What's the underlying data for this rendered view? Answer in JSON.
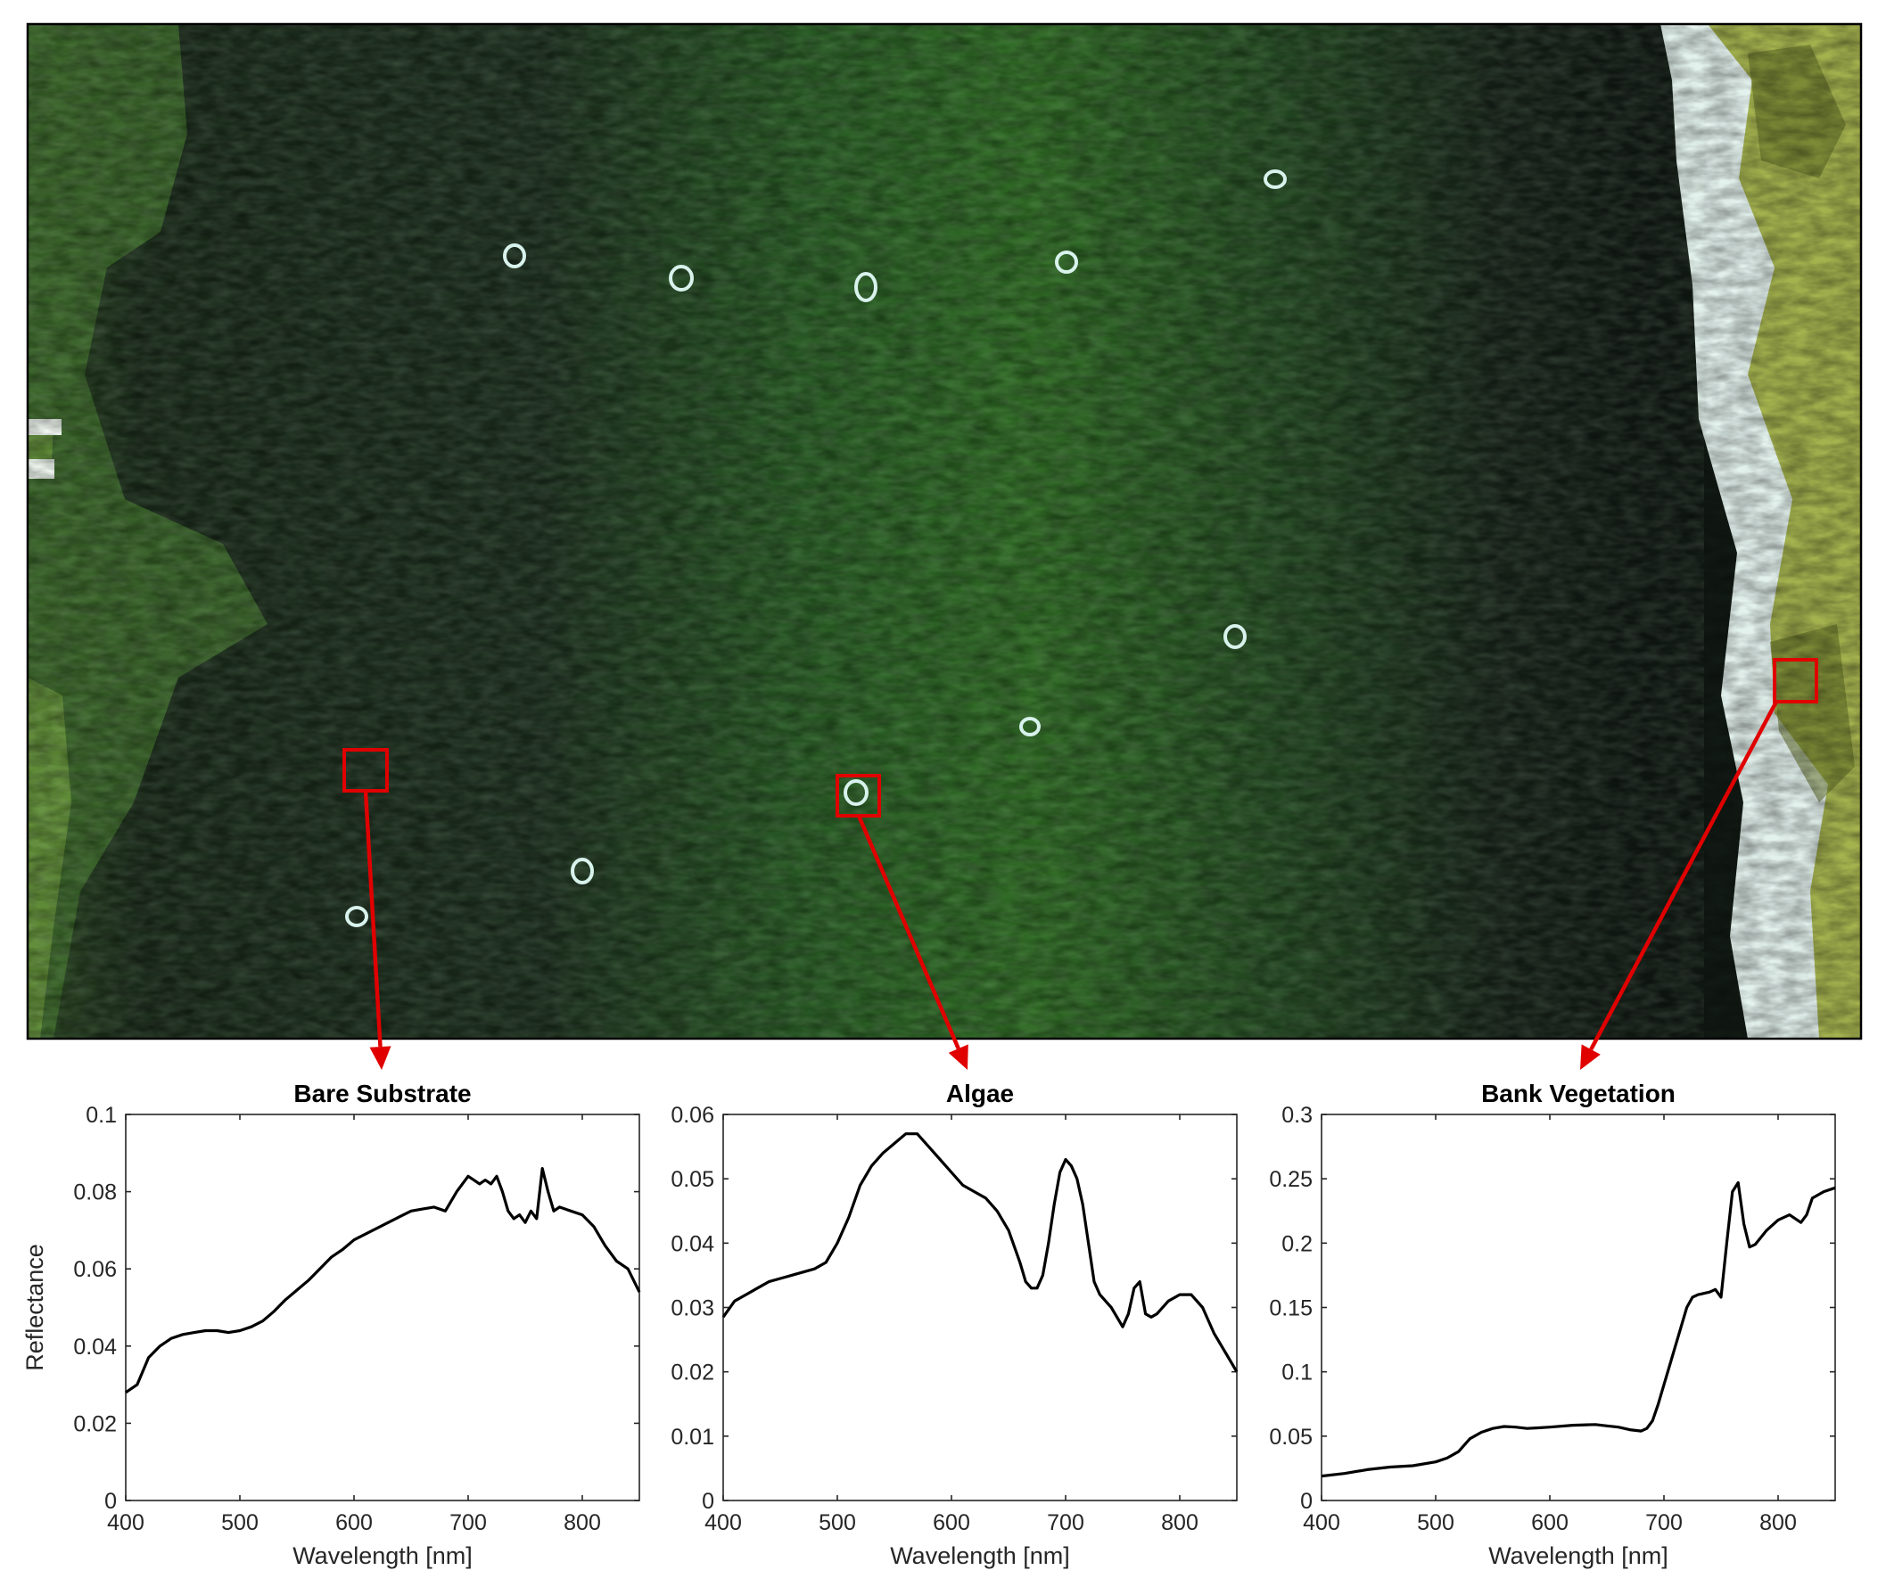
{
  "colors": {
    "marker": "#e00000",
    "line": "#000000",
    "river_green": "#2f6a22",
    "river_dark": "#162218",
    "bank_light": "#e4f2ee",
    "bank_veg": "#9aa832"
  },
  "image": {
    "markers": [
      {
        "target": "Bare Substrate"
      },
      {
        "target": "Algae"
      },
      {
        "target": "Bank Vegetation"
      }
    ]
  },
  "chart_data": [
    {
      "type": "line",
      "title": "Bare Substrate",
      "xlabel": "Wavelength [nm]",
      "ylabel": "Reflectance",
      "xlim": [
        400,
        850
      ],
      "ylim": [
        0,
        0.1
      ],
      "xticks": [
        "400",
        "500",
        "600",
        "700",
        "800"
      ],
      "yticks": [
        "0",
        "0.02",
        "0.04",
        "0.06",
        "0.08",
        "0.1"
      ],
      "grid": false,
      "x": [
        400,
        410,
        420,
        430,
        440,
        450,
        460,
        470,
        480,
        490,
        500,
        510,
        520,
        530,
        540,
        550,
        560,
        570,
        580,
        590,
        600,
        610,
        620,
        630,
        640,
        650,
        660,
        670,
        680,
        690,
        695,
        700,
        705,
        710,
        715,
        720,
        725,
        730,
        735,
        740,
        745,
        750,
        755,
        760,
        765,
        770,
        775,
        780,
        790,
        800,
        810,
        820,
        830,
        840,
        850
      ],
      "values": [
        0.028,
        0.03,
        0.037,
        0.04,
        0.042,
        0.043,
        0.0435,
        0.044,
        0.044,
        0.0435,
        0.044,
        0.045,
        0.0465,
        0.049,
        0.052,
        0.0545,
        0.057,
        0.06,
        0.063,
        0.065,
        0.0675,
        0.069,
        0.0705,
        0.072,
        0.0735,
        0.075,
        0.0755,
        0.076,
        0.075,
        0.08,
        0.082,
        0.084,
        0.083,
        0.082,
        0.083,
        0.082,
        0.084,
        0.08,
        0.075,
        0.073,
        0.074,
        0.072,
        0.075,
        0.073,
        0.086,
        0.08,
        0.075,
        0.076,
        0.075,
        0.074,
        0.071,
        0.066,
        0.062,
        0.06,
        0.054
      ]
    },
    {
      "type": "line",
      "title": "Algae",
      "xlabel": "Wavelength [nm]",
      "ylabel": "",
      "xlim": [
        400,
        850
      ],
      "ylim": [
        0,
        0.06
      ],
      "xticks": [
        "400",
        "500",
        "600",
        "700",
        "800"
      ],
      "yticks": [
        "0",
        "0.01",
        "0.02",
        "0.03",
        "0.04",
        "0.05",
        "0.06"
      ],
      "grid": false,
      "x": [
        400,
        410,
        420,
        430,
        440,
        450,
        460,
        470,
        480,
        490,
        500,
        510,
        520,
        530,
        540,
        550,
        560,
        570,
        580,
        590,
        600,
        610,
        620,
        630,
        640,
        650,
        660,
        665,
        670,
        675,
        680,
        685,
        690,
        695,
        700,
        705,
        710,
        715,
        720,
        725,
        730,
        740,
        750,
        755,
        760,
        765,
        770,
        775,
        780,
        790,
        800,
        810,
        820,
        830,
        840,
        850
      ],
      "values": [
        0.0285,
        0.031,
        0.032,
        0.033,
        0.034,
        0.0345,
        0.035,
        0.0355,
        0.036,
        0.037,
        0.04,
        0.044,
        0.049,
        0.052,
        0.054,
        0.0555,
        0.057,
        0.057,
        0.055,
        0.053,
        0.051,
        0.049,
        0.048,
        0.047,
        0.045,
        0.042,
        0.037,
        0.034,
        0.033,
        0.033,
        0.035,
        0.04,
        0.046,
        0.051,
        0.053,
        0.052,
        0.05,
        0.046,
        0.04,
        0.034,
        0.032,
        0.03,
        0.027,
        0.029,
        0.033,
        0.034,
        0.029,
        0.0285,
        0.029,
        0.031,
        0.032,
        0.032,
        0.03,
        0.026,
        0.023,
        0.02
      ]
    },
    {
      "type": "line",
      "title": "Bank Vegetation",
      "xlabel": "Wavelength [nm]",
      "ylabel": "",
      "xlim": [
        400,
        850
      ],
      "ylim": [
        0,
        0.3
      ],
      "xticks": [
        "400",
        "500",
        "600",
        "700",
        "800"
      ],
      "yticks": [
        "0",
        "0.05",
        "0.1",
        "0.15",
        "0.2",
        "0.25",
        "0.3"
      ],
      "grid": false,
      "x": [
        400,
        420,
        440,
        460,
        480,
        500,
        510,
        520,
        530,
        540,
        550,
        560,
        570,
        580,
        590,
        600,
        620,
        640,
        650,
        660,
        670,
        680,
        685,
        690,
        695,
        700,
        705,
        710,
        715,
        720,
        725,
        730,
        740,
        745,
        750,
        755,
        760,
        765,
        770,
        775,
        780,
        790,
        800,
        810,
        820,
        825,
        830,
        840,
        850
      ],
      "values": [
        0.019,
        0.021,
        0.024,
        0.026,
        0.027,
        0.03,
        0.033,
        0.038,
        0.048,
        0.053,
        0.056,
        0.0575,
        0.057,
        0.056,
        0.0565,
        0.057,
        0.0585,
        0.059,
        0.058,
        0.057,
        0.055,
        0.054,
        0.056,
        0.062,
        0.075,
        0.09,
        0.105,
        0.12,
        0.135,
        0.15,
        0.158,
        0.16,
        0.162,
        0.164,
        0.158,
        0.2,
        0.24,
        0.247,
        0.215,
        0.197,
        0.199,
        0.21,
        0.218,
        0.222,
        0.216,
        0.222,
        0.235,
        0.24,
        0.243
      ]
    }
  ]
}
